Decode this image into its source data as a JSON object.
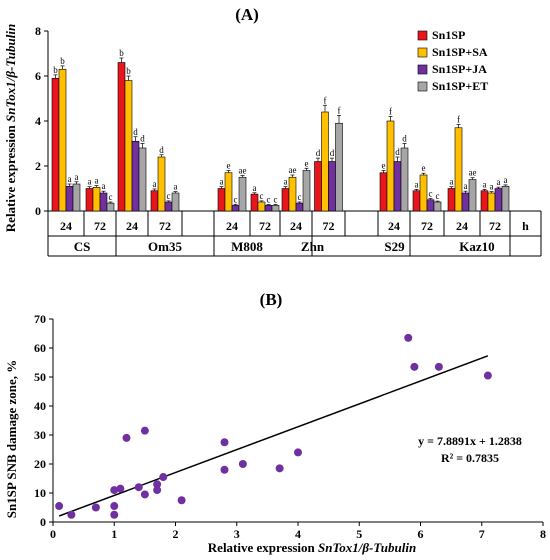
{
  "chart_data": [
    {
      "type": "bar",
      "panel_label": "(A)",
      "ylabel_prefix": "Relative expression ",
      "ylabel_gene": "SnTox1/β-Tubulin",
      "ylim": [
        0,
        8
      ],
      "yticks": [
        "0",
        "2",
        "4",
        "6",
        "8"
      ],
      "legend_position": "top-right",
      "series": [
        {
          "name": "Sn1SP",
          "color": "#e8161b"
        },
        {
          "name": "Sn1SP+SA",
          "color": "#ffc000"
        },
        {
          "name": "Sn1SP+JA",
          "color": "#7030a0"
        },
        {
          "name": "Sn1SP+ET",
          "color": "#a6a6a6"
        }
      ],
      "groups": [
        {
          "time": "24",
          "values": [
            5.9,
            6.3,
            1.1,
            1.2
          ],
          "err": [
            0.15,
            0.15,
            0.1,
            0.1
          ],
          "letters": [
            "b",
            "b",
            "a",
            "a"
          ]
        },
        {
          "time": "72",
          "values": [
            1.0,
            1.05,
            0.8,
            0.35
          ],
          "err": [
            0.08,
            0.08,
            0.08,
            0.05
          ],
          "letters": [
            "a",
            "a",
            "a",
            "c"
          ]
        },
        {
          "time": "24",
          "values": [
            6.6,
            5.8,
            3.1,
            2.8
          ],
          "err": [
            0.2,
            0.2,
            0.2,
            0.2
          ],
          "letters": [
            "b",
            "b",
            "d",
            "d"
          ]
        },
        {
          "time": "72",
          "values": [
            0.9,
            2.4,
            0.4,
            0.8
          ],
          "err": [
            0.08,
            0.1,
            0.05,
            0.06
          ],
          "letters": [
            "a",
            "d",
            "c",
            "a"
          ]
        },
        {
          "time": "24",
          "values": [
            1.0,
            1.7,
            0.25,
            1.5
          ],
          "err": [
            0.08,
            0.1,
            0.05,
            0.08
          ],
          "letters": [
            "a",
            "e",
            "c",
            "ae"
          ]
        },
        {
          "time": "72",
          "values": [
            0.75,
            0.4,
            0.25,
            0.25
          ],
          "err": [
            0.06,
            0.05,
            0.04,
            0.04
          ],
          "letters": [
            "a",
            "c",
            "c",
            "c"
          ]
        },
        {
          "time": "24",
          "values": [
            1.0,
            1.5,
            0.35,
            1.8
          ],
          "err": [
            0.08,
            0.1,
            0.05,
            0.1
          ],
          "letters": [
            "a",
            "ae",
            "c",
            "e"
          ]
        },
        {
          "time": "72",
          "values": [
            2.2,
            4.4,
            2.2,
            3.9
          ],
          "err": [
            0.15,
            0.3,
            0.15,
            0.35
          ],
          "letters": [
            "d",
            "f",
            "d",
            "f"
          ]
        },
        {
          "time": "24",
          "values": [
            1.7,
            4.0,
            2.2,
            2.8
          ],
          "err": [
            0.1,
            0.2,
            0.2,
            0.2
          ],
          "letters": [
            "e",
            "f",
            "d",
            "d"
          ]
        },
        {
          "time": "72",
          "values": [
            0.9,
            1.6,
            0.5,
            0.4
          ],
          "err": [
            0.06,
            0.08,
            0.05,
            0.04
          ],
          "letters": [
            "a",
            "e",
            "c",
            "c"
          ]
        },
        {
          "time": "24",
          "values": [
            1.0,
            3.7,
            0.8,
            1.4
          ],
          "err": [
            0.08,
            0.15,
            0.08,
            0.08
          ],
          "letters": [
            "a",
            "f",
            "a",
            "ae"
          ]
        },
        {
          "time": "72",
          "values": [
            0.9,
            0.8,
            1.0,
            1.1
          ],
          "err": [
            0.06,
            0.06,
            0.06,
            0.06
          ],
          "letters": [
            "a",
            "a",
            "a",
            "a"
          ]
        }
      ],
      "isolates": [
        "CS",
        "Om35",
        "M808",
        "Zhn",
        "S29",
        "Kaz10"
      ],
      "time_unit": "h"
    },
    {
      "type": "scatter",
      "panel_label": "(B)",
      "xlabel_prefix": "Relative expression ",
      "xlabel_gene": "SnTox1/β-Tubulin",
      "ylabel": "Sn1SP SNB damage zone, %",
      "xlim": [
        0,
        8
      ],
      "ylim": [
        0,
        70
      ],
      "xticks": [
        "0",
        "1",
        "2",
        "3",
        "4",
        "5",
        "6",
        "7",
        "8"
      ],
      "yticks": [
        "0",
        "10",
        "20",
        "30",
        "40",
        "50",
        "60",
        "70"
      ],
      "point_color": "#7030a0",
      "points": [
        [
          0.1,
          5.5
        ],
        [
          0.3,
          2.5
        ],
        [
          0.7,
          5
        ],
        [
          1.0,
          2.5
        ],
        [
          1.0,
          5.5
        ],
        [
          1.0,
          11
        ],
        [
          1.1,
          11.5
        ],
        [
          1.2,
          29
        ],
        [
          1.4,
          12
        ],
        [
          1.5,
          9.5
        ],
        [
          1.5,
          31.5
        ],
        [
          1.7,
          11
        ],
        [
          1.7,
          13
        ],
        [
          1.8,
          15.5
        ],
        [
          2.1,
          7.5
        ],
        [
          2.8,
          18
        ],
        [
          2.8,
          27.5
        ],
        [
          3.1,
          20
        ],
        [
          3.7,
          18.5
        ],
        [
          4.0,
          24
        ],
        [
          5.8,
          63.5
        ],
        [
          5.9,
          53.5
        ],
        [
          6.3,
          53.5
        ],
        [
          7.1,
          50.5
        ]
      ],
      "trendline": {
        "slope": 7.8891,
        "intercept": 1.2838
      },
      "equation": "y = 7.8891x + 1.2838",
      "r2": "R² = 0.7835"
    }
  ]
}
